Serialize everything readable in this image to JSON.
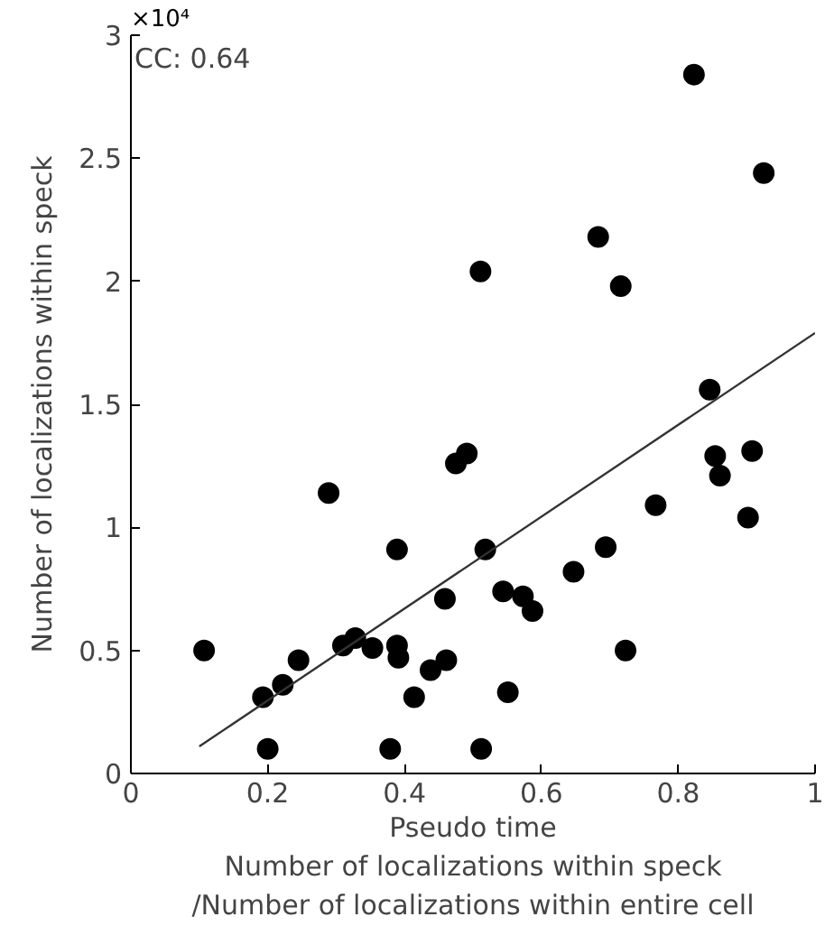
{
  "chart_data": {
    "type": "scatter",
    "xlabel": "Pseudo time\nNumber of localizations within speck\n/Number of localizations within entire cell",
    "ylabel": "Number of localizations within speck",
    "annotations": [
      "×10⁴",
      "CC: 0.64"
    ],
    "xlim": [
      0,
      1
    ],
    "xticks": [
      0,
      0.2,
      0.4,
      0.6,
      0.8,
      1
    ],
    "ylim": [
      0,
      3
    ],
    "yticks": [
      0,
      0.5,
      1,
      1.5,
      2,
      2.5,
      3
    ],
    "grid": false,
    "marker": "circle",
    "series": [
      {
        "color": "#000000",
        "x": [
          0.107,
          0.193,
          0.2,
          0.222,
          0.245,
          0.289,
          0.31,
          0.328,
          0.353,
          0.379,
          0.389,
          0.389,
          0.391,
          0.414,
          0.438,
          0.459,
          0.461,
          0.475,
          0.491,
          0.511,
          0.512,
          0.518,
          0.544,
          0.551,
          0.573,
          0.587,
          0.647,
          0.683,
          0.694,
          0.716,
          0.723,
          0.767,
          0.823,
          0.846,
          0.854,
          0.861,
          0.902,
          0.908,
          0.925
        ],
        "values": [
          0.5,
          0.31,
          0.1,
          0.36,
          0.46,
          1.14,
          0.52,
          0.55,
          0.51,
          0.1,
          0.91,
          0.52,
          0.47,
          0.31,
          0.42,
          0.71,
          0.46,
          1.26,
          1.3,
          2.04,
          0.1,
          0.91,
          0.74,
          0.33,
          0.72,
          0.66,
          0.82,
          2.18,
          0.92,
          1.98,
          0.5,
          1.09,
          2.84,
          1.56,
          1.29,
          1.21,
          1.04,
          1.31,
          2.44
        ]
      },
      {
        "type": "line",
        "color": "#333333",
        "marker": "none",
        "x": [
          0.1,
          1.0
        ],
        "values": [
          0.11,
          1.79
        ]
      }
    ]
  }
}
